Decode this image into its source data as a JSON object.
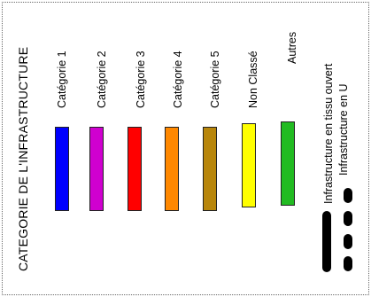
{
  "legend": {
    "title": "CATEGORIE DE L'INFRASTRUCTURE",
    "categories": [
      {
        "label": "Catégorie 1",
        "color": "#0000ff"
      },
      {
        "label": "Catégorie 2",
        "color": "#d000d0"
      },
      {
        "label": "Catégorie 3",
        "color": "#ff0000"
      },
      {
        "label": "Catégorie 4",
        "color": "#ff8800"
      },
      {
        "label": "Catégorie 5",
        "color": "#b8860b"
      },
      {
        "label": "Non Classé",
        "color": "#ffff00"
      },
      {
        "label": "Autres",
        "color": "#22bb22"
      }
    ],
    "line_types": [
      {
        "label": "Infrastructure en tissu ouvert",
        "style": "solid"
      },
      {
        "label": "Infrastructure en U",
        "style": "dashed"
      }
    ]
  }
}
